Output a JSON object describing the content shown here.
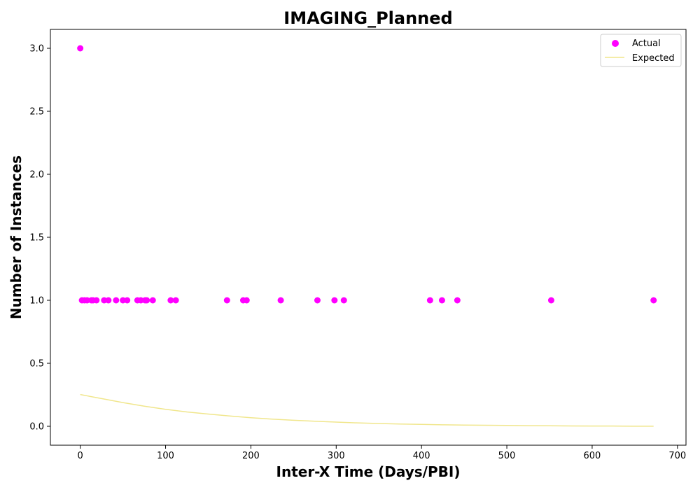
{
  "chart_data": {
    "type": "scatter",
    "title": "IMAGING_Planned",
    "xlabel": "Inter-X Time (Days/PBI)",
    "ylabel": "Number of Instances",
    "xlim": [
      -35,
      710
    ],
    "ylim": [
      -0.15,
      3.15
    ],
    "xticks": [
      0,
      100,
      200,
      300,
      400,
      500,
      600,
      700
    ],
    "xtick_labels": [
      "0",
      "100",
      "200",
      "300",
      "400",
      "500",
      "600",
      "700"
    ],
    "yticks": [
      0.0,
      0.5,
      1.0,
      1.5,
      2.0,
      2.5,
      3.0
    ],
    "ytick_labels": [
      "0.0",
      "0.5",
      "1.0",
      "1.5",
      "2.0",
      "2.5",
      "3.0"
    ],
    "grid": false,
    "legend_position": "top-right",
    "colors": {
      "actual": "#ff00ff",
      "expected": "#f0e68c"
    },
    "series": [
      {
        "name": "Actual",
        "kind": "scatter",
        "points": [
          [
            0,
            3
          ],
          [
            2,
            1
          ],
          [
            5,
            1
          ],
          [
            8,
            1
          ],
          [
            13,
            1
          ],
          [
            15,
            1
          ],
          [
            19,
            1
          ],
          [
            28,
            1
          ],
          [
            33,
            1
          ],
          [
            42,
            1
          ],
          [
            50,
            1
          ],
          [
            55,
            1
          ],
          [
            67,
            1
          ],
          [
            71,
            1
          ],
          [
            76,
            1
          ],
          [
            78,
            1
          ],
          [
            85,
            1
          ],
          [
            106,
            1
          ],
          [
            112,
            1
          ],
          [
            172,
            1
          ],
          [
            191,
            1
          ],
          [
            195,
            1
          ],
          [
            235,
            1
          ],
          [
            278,
            1
          ],
          [
            298,
            1
          ],
          [
            309,
            1
          ],
          [
            410,
            1
          ],
          [
            424,
            1
          ],
          [
            442,
            1
          ],
          [
            552,
            1
          ],
          [
            672,
            1
          ]
        ]
      },
      {
        "name": "Expected",
        "kind": "line",
        "points": [
          [
            0,
            0.252
          ],
          [
            25,
            0.22
          ],
          [
            50,
            0.188
          ],
          [
            75,
            0.16
          ],
          [
            100,
            0.135
          ],
          [
            125,
            0.114
          ],
          [
            150,
            0.097
          ],
          [
            175,
            0.082
          ],
          [
            200,
            0.068
          ],
          [
            225,
            0.057
          ],
          [
            250,
            0.048
          ],
          [
            275,
            0.04
          ],
          [
            300,
            0.033
          ],
          [
            325,
            0.027
          ],
          [
            350,
            0.022
          ],
          [
            375,
            0.018
          ],
          [
            400,
            0.015
          ],
          [
            425,
            0.012
          ],
          [
            450,
            0.01
          ],
          [
            475,
            0.008
          ],
          [
            500,
            0.007
          ],
          [
            525,
            0.005
          ],
          [
            550,
            0.004
          ],
          [
            575,
            0.003
          ],
          [
            600,
            0.002
          ],
          [
            625,
            0.002
          ],
          [
            650,
            0.001
          ],
          [
            672,
            0.001
          ]
        ]
      }
    ]
  }
}
